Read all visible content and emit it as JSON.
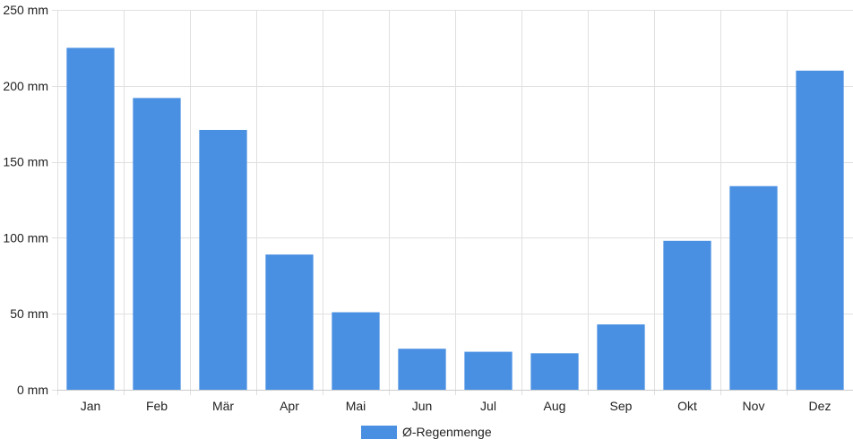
{
  "chart_data": {
    "type": "bar",
    "categories": [
      "Jan",
      "Feb",
      "Mär",
      "Apr",
      "Mai",
      "Jun",
      "Jul",
      "Aug",
      "Sep",
      "Okt",
      "Nov",
      "Dez"
    ],
    "series": [
      {
        "name": "Ø-Regenmenge",
        "color": "#4a90e2",
        "values": [
          225,
          192,
          171,
          89,
          51,
          27,
          25,
          24,
          43,
          98,
          134,
          210
        ]
      }
    ],
    "ylim": [
      0,
      250
    ],
    "y_ticks": [
      "0 mm",
      "50 mm",
      "100 mm",
      "150 mm",
      "200 mm",
      "250 mm"
    ],
    "y_tick_values": [
      0,
      50,
      100,
      150,
      200,
      250
    ],
    "grid": true,
    "legend_placement": "bottom-center"
  }
}
